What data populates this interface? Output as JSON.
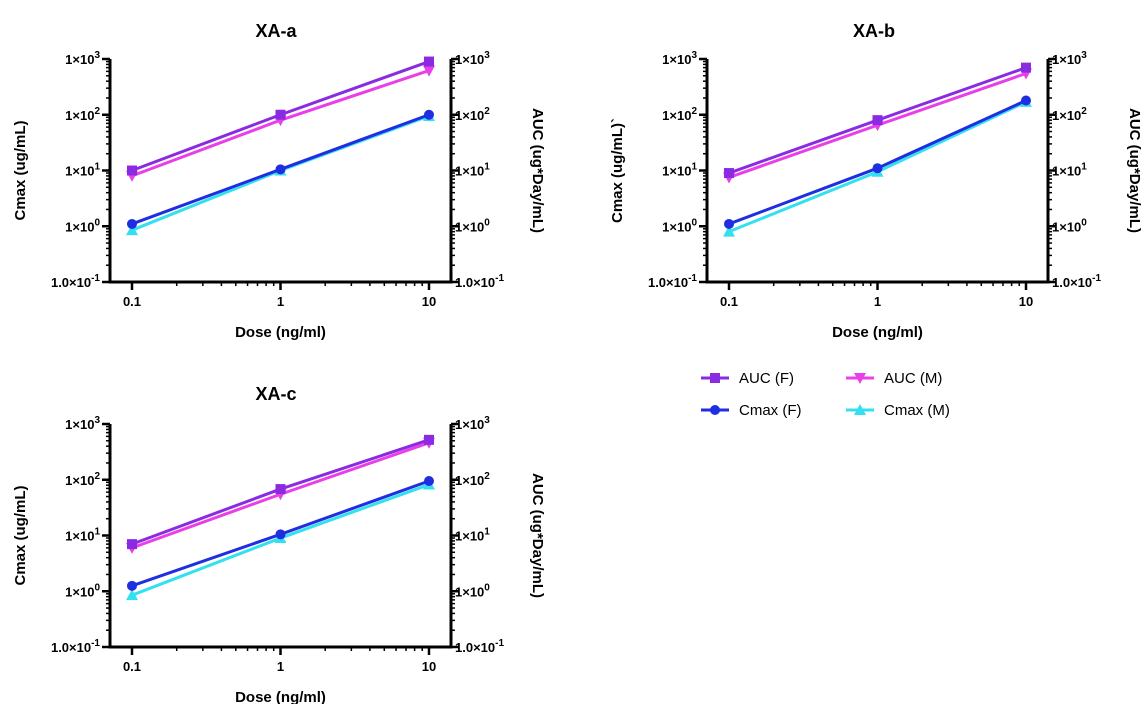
{
  "chart_data": [
    {
      "type": "line",
      "title": "XA-a",
      "xlabel": "Dose (ng/ml)",
      "ylabel": "Cmax (ug/mL)",
      "y2label": "AUC (ug*Day/mL)",
      "x_scale": "log",
      "y_scale": "log",
      "x": [
        0.1,
        1,
        10
      ],
      "x_tick_labels": [
        "0.1",
        "1",
        "10"
      ],
      "ylim": [
        0.1,
        1000
      ],
      "y_ticks": [
        {
          "base": "1.0×10",
          "exp": "-1"
        },
        {
          "base": "1×10",
          "exp": "0"
        },
        {
          "base": "1×10",
          "exp": "1"
        },
        {
          "base": "1×10",
          "exp": "2"
        },
        {
          "base": "1×10",
          "exp": "3"
        }
      ],
      "series": [
        {
          "name": "AUC (F)",
          "values": [
            10,
            100,
            900
          ]
        },
        {
          "name": "AUC (M)",
          "values": [
            8,
            80,
            620
          ]
        },
        {
          "name": "Cmax (F)",
          "values": [
            1.1,
            10.5,
            100
          ]
        },
        {
          "name": "Cmax (M)",
          "values": [
            0.85,
            10,
            95
          ]
        }
      ]
    },
    {
      "type": "line",
      "title": "XA-b",
      "xlabel": "Dose (ng/ml)",
      "ylabel": "Cmax (ug/mL)`",
      "y2label": "AUC (ug*Day/mL)",
      "x_scale": "log",
      "y_scale": "log",
      "x": [
        0.1,
        1,
        10
      ],
      "x_tick_labels": [
        "0.1",
        "1",
        "10"
      ],
      "ylim": [
        0.1,
        1000
      ],
      "y_ticks": [
        {
          "base": "1.0×10",
          "exp": "-1"
        },
        {
          "base": "1×10",
          "exp": "0"
        },
        {
          "base": "1×10",
          "exp": "1"
        },
        {
          "base": "1×10",
          "exp": "2"
        },
        {
          "base": "1×10",
          "exp": "3"
        }
      ],
      "series": [
        {
          "name": "AUC (F)",
          "values": [
            9,
            80,
            700
          ]
        },
        {
          "name": "AUC (M)",
          "values": [
            7.5,
            65,
            550
          ]
        },
        {
          "name": "Cmax (F)",
          "values": [
            1.1,
            11,
            180
          ]
        },
        {
          "name": "Cmax (M)",
          "values": [
            0.8,
            9.5,
            170
          ]
        }
      ]
    },
    {
      "type": "line",
      "title": "XA-c",
      "xlabel": "Dose (ng/ml)",
      "ylabel": "Cmax (ug/mL)",
      "y2label": "AUC (ug*Day/mL)",
      "x_scale": "log",
      "y_scale": "log",
      "x": [
        0.1,
        1,
        10
      ],
      "x_tick_labels": [
        "0.1",
        "1",
        "10"
      ],
      "ylim": [
        0.1,
        1000
      ],
      "y_ticks": [
        {
          "base": "1.0×10",
          "exp": "-1"
        },
        {
          "base": "1×10",
          "exp": "0"
        },
        {
          "base": "1×10",
          "exp": "1"
        },
        {
          "base": "1×10",
          "exp": "2"
        },
        {
          "base": "1×10",
          "exp": "3"
        }
      ],
      "series": [
        {
          "name": "AUC (F)",
          "values": [
            7,
            68,
            520
          ]
        },
        {
          "name": "AUC (M)",
          "values": [
            6,
            55,
            460
          ]
        },
        {
          "name": "Cmax (F)",
          "values": [
            1.25,
            10.5,
            95
          ]
        },
        {
          "name": "Cmax (M)",
          "values": [
            0.85,
            9,
            82
          ]
        }
      ]
    }
  ],
  "series_styles": [
    {
      "name": "AUC (F)",
      "color": "#8a2be2",
      "marker": "square"
    },
    {
      "name": "AUC (M)",
      "color": "#e83fe8",
      "marker": "triangle-down"
    },
    {
      "name": "Cmax (F)",
      "color": "#1f2ee0",
      "marker": "circle"
    },
    {
      "name": "Cmax (M)",
      "color": "#33e0f0",
      "marker": "triangle-up"
    }
  ],
  "legend": {
    "placement": "right-middle",
    "entries": [
      "AUC (F)",
      "AUC (M)",
      "Cmax (F)",
      "Cmax (M)"
    ]
  }
}
